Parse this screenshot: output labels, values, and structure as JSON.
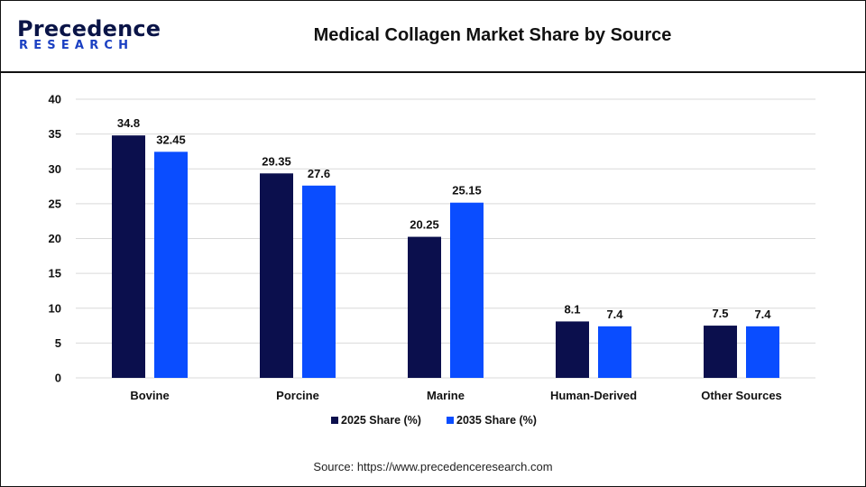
{
  "header": {
    "logo_top": "Precedence",
    "logo_bottom": "RESEARCH",
    "title": "Medical Collagen Market Share by Source"
  },
  "source": "Source: https://www.precedenceresearch.com",
  "colors": {
    "series_2025": "#0b0f4d",
    "series_2035": "#0a4dff",
    "grid": "#d9d9d9",
    "text": "#111111"
  },
  "chart_data": {
    "type": "bar",
    "title": "Medical Collagen Market Share by Source",
    "xlabel": "",
    "ylabel": "",
    "categories": [
      "Bovine",
      "Porcine",
      "Marine",
      "Human-Derived",
      "Other Sources"
    ],
    "series": [
      {
        "name": "2025 Share (%)",
        "values": [
          34.8,
          29.35,
          20.25,
          8.1,
          7.5
        ],
        "labels": [
          "34.8",
          "29.35",
          "20.25",
          "8.1",
          "7.5"
        ]
      },
      {
        "name": "2035 Share (%)",
        "values": [
          32.45,
          27.6,
          25.15,
          7.4,
          7.4
        ],
        "labels": [
          "32.45",
          "27.6",
          "25.15",
          "7.4",
          "7.4"
        ]
      }
    ],
    "ylim": [
      0,
      40
    ],
    "yticks": [
      0,
      5,
      10,
      15,
      20,
      25,
      30,
      35,
      40
    ],
    "grid": true,
    "legend_position": "bottom"
  }
}
